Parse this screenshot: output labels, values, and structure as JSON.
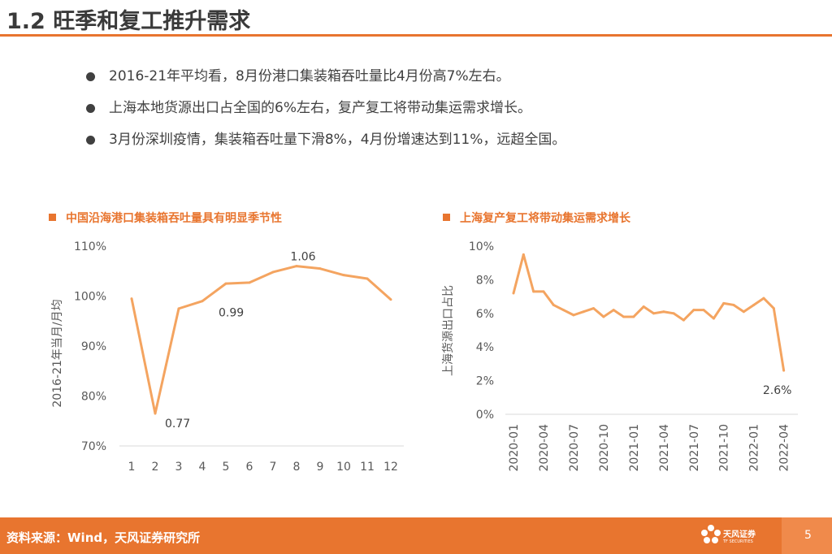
{
  "page": {
    "title": "1.2 旺季和复工推升需求",
    "bullets": [
      "2016-21年平均看，8月份港口集装箱吞吐量比4月份高7%左右。",
      "上海本地货源出口占全国的6%左右，复产复工将带动集运需求增长。",
      "3月份深圳疫情，集装箱吞吐量下滑8%，4月份增速达到11%，远超全国。"
    ],
    "footer": {
      "source": "资料来源：Wind，天风证券研究所",
      "logo_text": "天风证券",
      "logo_sub": "TF SECURITIES",
      "page_number": "5"
    }
  },
  "colors": {
    "accent": "#e8752f",
    "line": "#f4a460",
    "text": "#404040"
  },
  "chart_data": [
    {
      "type": "line",
      "title": "中国沿海港口集装箱吞吐量具有明显季节性",
      "xlabel": "",
      "ylabel": "2016-21年当月/月均",
      "categories": [
        "1",
        "2",
        "3",
        "4",
        "5",
        "6",
        "7",
        "8",
        "9",
        "10",
        "11",
        "12"
      ],
      "values": [
        0.995,
        0.765,
        0.975,
        0.99,
        1.025,
        1.027,
        1.048,
        1.06,
        1.055,
        1.042,
        1.035,
        0.993
      ],
      "yticks": [
        0.7,
        0.8,
        0.9,
        1.0,
        1.1
      ],
      "ytick_labels": [
        "70%",
        "80%",
        "90%",
        "100%",
        "110%"
      ],
      "ylim": [
        0.7,
        1.1
      ],
      "annotations": [
        {
          "index": 1,
          "text": "0.77"
        },
        {
          "index": 3,
          "text": "0.99"
        },
        {
          "index": 7,
          "text": "1.06"
        }
      ]
    },
    {
      "type": "line",
      "title": "上海复产复工将带动集运需求增长",
      "xlabel": "",
      "ylabel": "上海货源出口占比",
      "months": 28,
      "tick_labels": [
        "2020-01",
        "2020-04",
        "2020-07",
        "2020-10",
        "2021-01",
        "2021-04",
        "2021-07",
        "2021-10",
        "2022-01",
        "2022-04"
      ],
      "values": [
        7.2,
        9.5,
        7.3,
        7.3,
        6.5,
        6.2,
        5.9,
        6.1,
        6.3,
        5.8,
        6.2,
        5.8,
        5.8,
        6.4,
        6.0,
        6.1,
        6.0,
        5.6,
        6.2,
        6.2,
        5.7,
        6.6,
        6.5,
        6.1,
        6.5,
        6.9,
        6.3,
        2.6
      ],
      "yticks": [
        0,
        2,
        4,
        6,
        8,
        10
      ],
      "ytick_labels": [
        "0%",
        "2%",
        "4%",
        "6%",
        "8%",
        "10%"
      ],
      "ylim": [
        0,
        10
      ],
      "annotations": [
        {
          "index": 27,
          "text": "2.6%"
        }
      ]
    }
  ]
}
